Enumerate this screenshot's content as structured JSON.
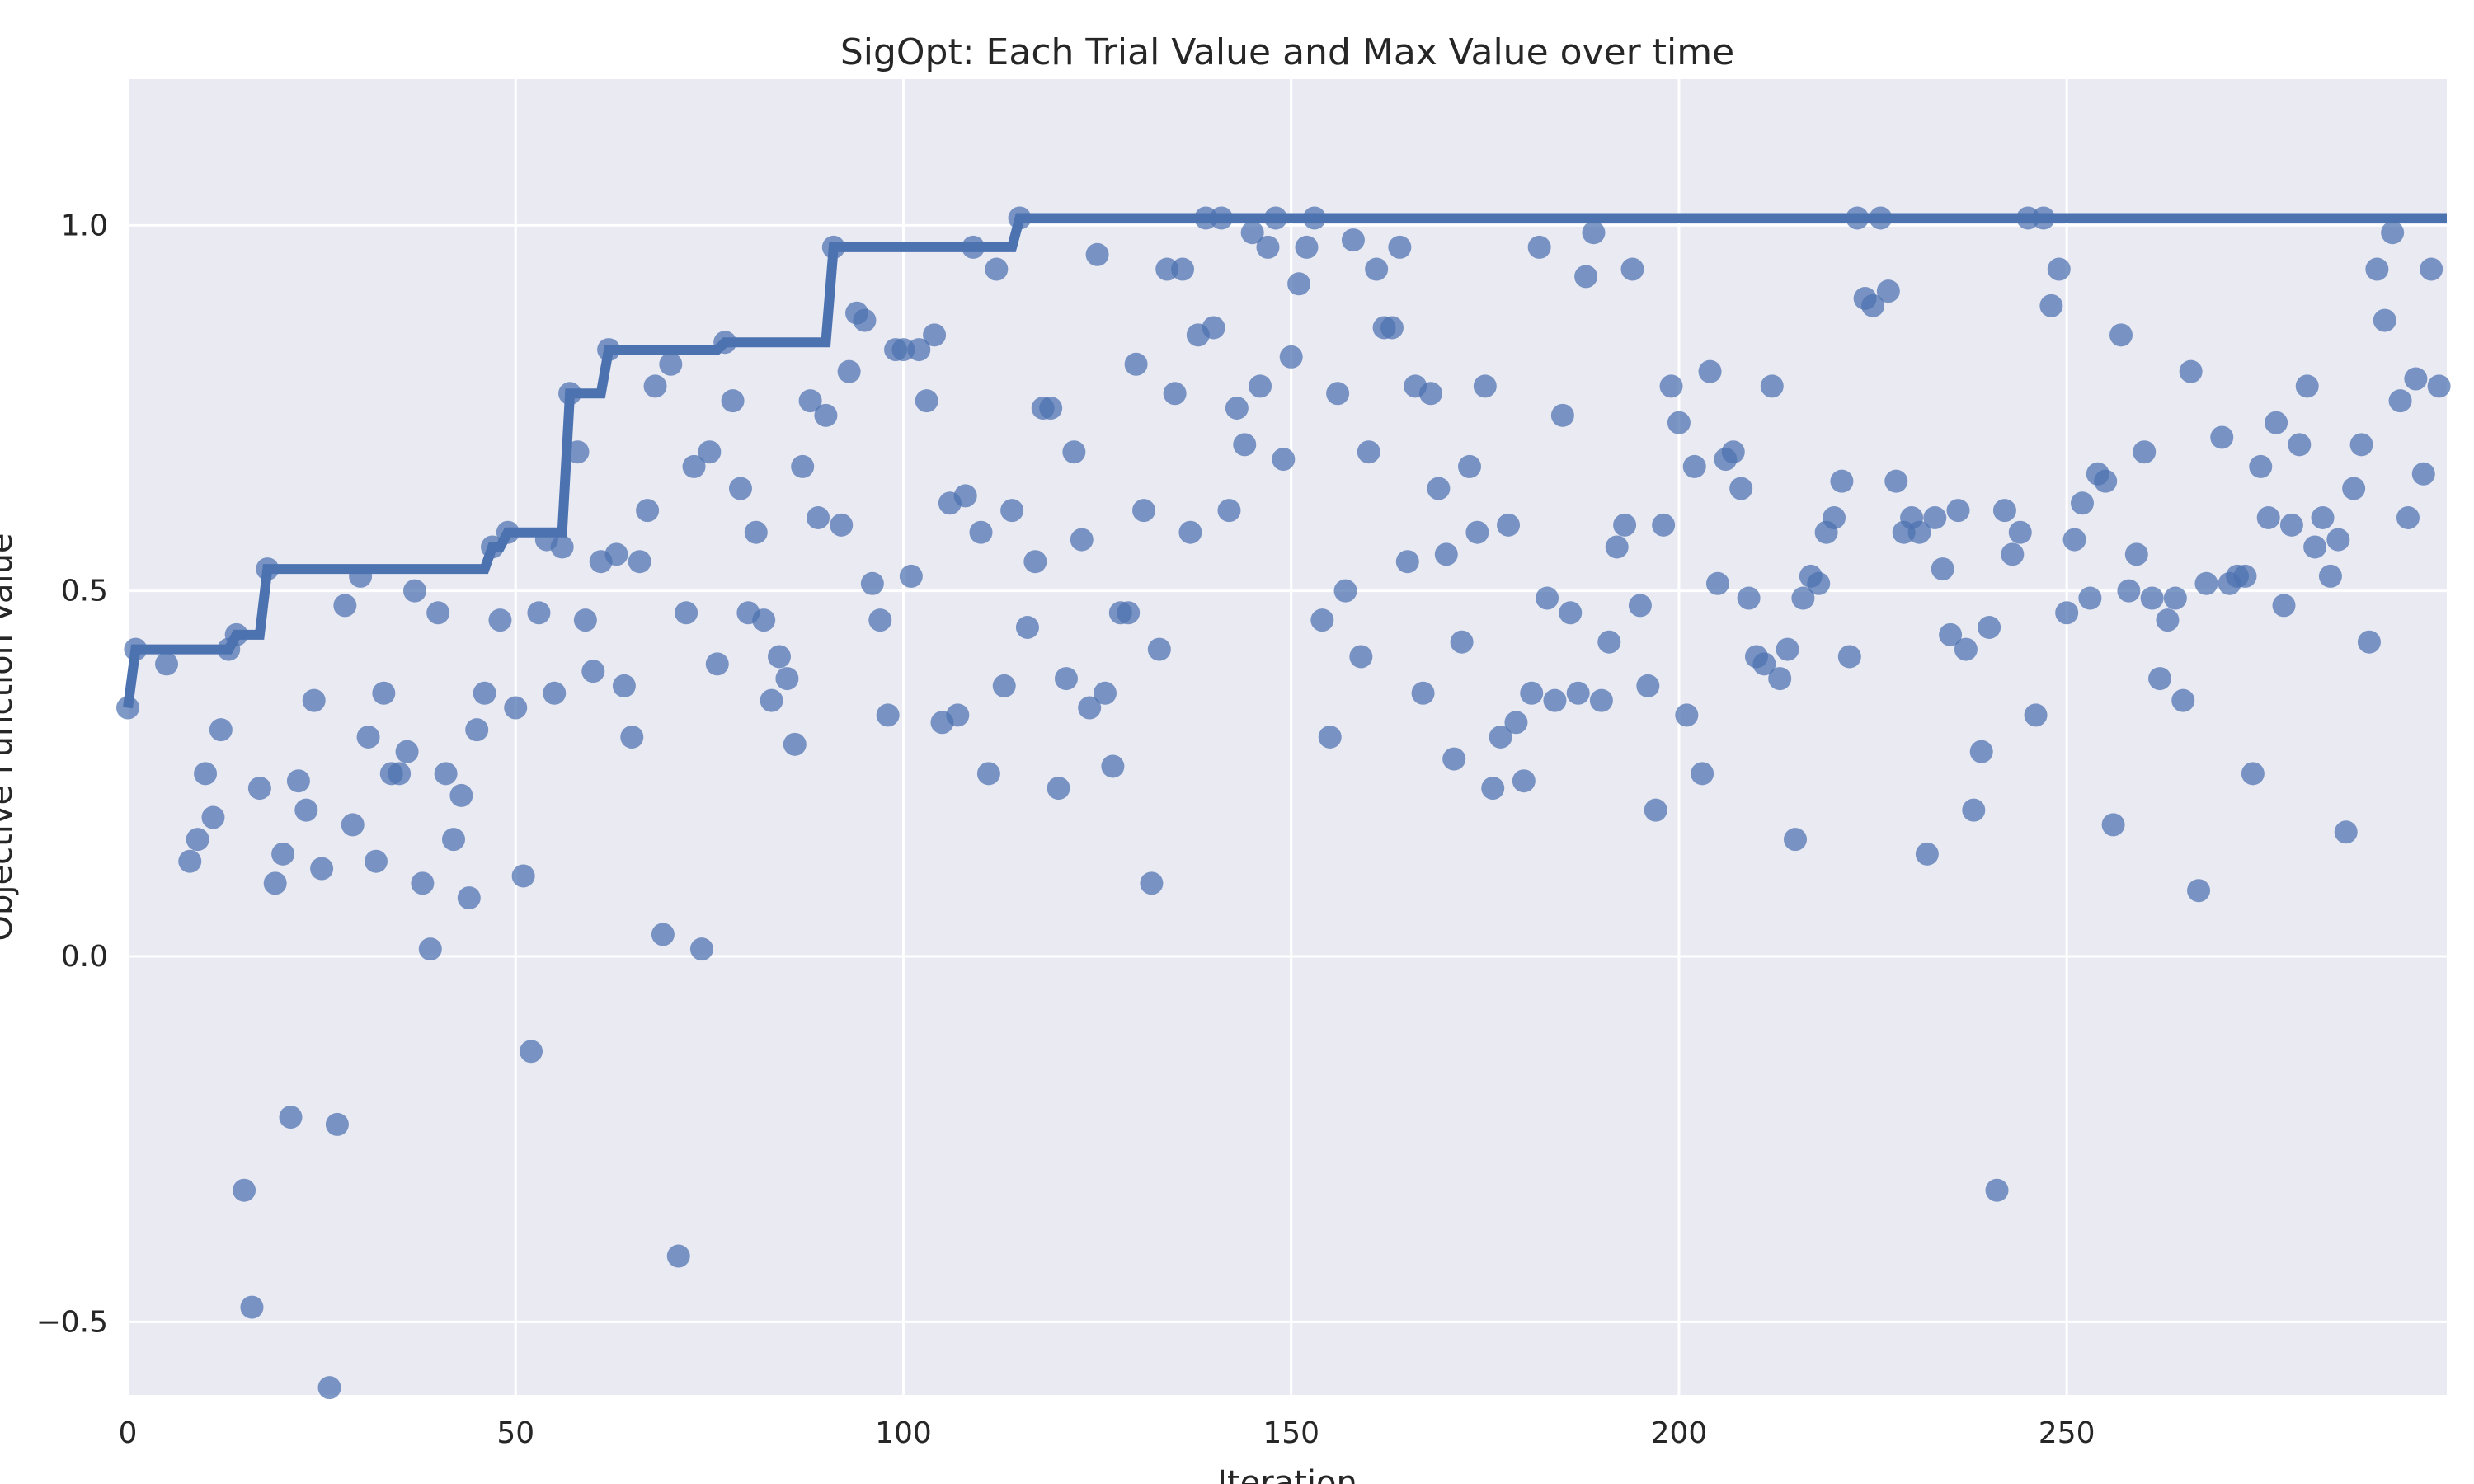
{
  "chart_data": {
    "type": "scatter",
    "title": "SigOpt: Each Trial Value and Max Value over time",
    "xlabel": "Iteration",
    "ylabel": "Objective Function Value",
    "xlim": [
      0,
      299
    ],
    "ylim": [
      -0.6,
      1.2
    ],
    "grid": true,
    "x_ticks": [
      0,
      50,
      100,
      150,
      200,
      250
    ],
    "y_ticks": [
      -0.5,
      0.0,
      0.5,
      1.0
    ],
    "x_tick_labels": [
      "0",
      "50",
      "100",
      "150",
      "200",
      "250"
    ],
    "y_tick_labels": [
      "−0.5",
      "0.0",
      "0.5",
      "1.0"
    ],
    "colors": {
      "background": "#eaeaf2",
      "points": "#4c72b0",
      "max_line": "#4c72b0"
    },
    "series": [
      {
        "kind": "scatter",
        "points": [
          [
            0,
            0.34
          ],
          [
            1,
            0.42
          ],
          [
            5,
            0.4
          ],
          [
            8,
            0.13
          ],
          [
            9,
            0.16
          ],
          [
            10,
            0.25
          ],
          [
            11,
            0.19
          ],
          [
            12,
            0.31
          ],
          [
            13,
            0.42
          ],
          [
            14,
            0.44
          ],
          [
            15,
            -0.32
          ],
          [
            16,
            -0.48
          ],
          [
            17,
            0.23
          ],
          [
            18,
            0.53
          ],
          [
            19,
            0.1
          ],
          [
            20,
            0.14
          ],
          [
            21,
            -0.22
          ],
          [
            22,
            0.24
          ],
          [
            23,
            0.2
          ],
          [
            24,
            0.35
          ],
          [
            25,
            0.12
          ],
          [
            26,
            -0.59
          ],
          [
            27,
            -0.23
          ],
          [
            28,
            0.48
          ],
          [
            29,
            0.18
          ],
          [
            30,
            0.52
          ],
          [
            31,
            0.3
          ],
          [
            32,
            0.13
          ],
          [
            33,
            0.36
          ],
          [
            34,
            0.25
          ],
          [
            35,
            0.25
          ],
          [
            36,
            0.28
          ],
          [
            37,
            0.5
          ],
          [
            38,
            0.1
          ],
          [
            39,
            0.01
          ],
          [
            40,
            0.47
          ],
          [
            41,
            0.25
          ],
          [
            42,
            0.16
          ],
          [
            43,
            0.22
          ],
          [
            44,
            0.08
          ],
          [
            45,
            0.31
          ],
          [
            46,
            0.36
          ],
          [
            47,
            0.56
          ],
          [
            48,
            0.46
          ],
          [
            49,
            0.58
          ],
          [
            50,
            0.34
          ],
          [
            51,
            0.11
          ],
          [
            52,
            -0.13
          ],
          [
            53,
            0.47
          ],
          [
            54,
            0.57
          ],
          [
            55,
            0.36
          ],
          [
            56,
            0.56
          ],
          [
            57,
            0.77
          ],
          [
            58,
            0.69
          ],
          [
            59,
            0.46
          ],
          [
            60,
            0.39
          ],
          [
            61,
            0.54
          ],
          [
            62,
            0.83
          ],
          [
            63,
            0.55
          ],
          [
            64,
            0.37
          ],
          [
            65,
            0.3
          ],
          [
            66,
            0.54
          ],
          [
            67,
            0.61
          ],
          [
            68,
            0.78
          ],
          [
            69,
            0.03
          ],
          [
            70,
            0.81
          ],
          [
            71,
            -0.41
          ],
          [
            72,
            0.47
          ],
          [
            73,
            0.67
          ],
          [
            74,
            0.01
          ],
          [
            75,
            0.69
          ],
          [
            76,
            0.4
          ],
          [
            77,
            0.84
          ],
          [
            78,
            0.76
          ],
          [
            79,
            0.64
          ],
          [
            80,
            0.47
          ],
          [
            81,
            0.58
          ],
          [
            82,
            0.46
          ],
          [
            83,
            0.35
          ],
          [
            84,
            0.41
          ],
          [
            85,
            0.38
          ],
          [
            86,
            0.29
          ],
          [
            87,
            0.67
          ],
          [
            88,
            0.76
          ],
          [
            89,
            0.6
          ],
          [
            90,
            0.74
          ],
          [
            91,
            0.97
          ],
          [
            92,
            0.59
          ],
          [
            93,
            0.8
          ],
          [
            94,
            0.88
          ],
          [
            95,
            0.87
          ],
          [
            96,
            0.51
          ],
          [
            97,
            0.46
          ],
          [
            98,
            0.33
          ],
          [
            99,
            0.83
          ],
          [
            100,
            0.83
          ],
          [
            101,
            0.52
          ],
          [
            102,
            0.83
          ],
          [
            103,
            0.76
          ],
          [
            104,
            0.85
          ],
          [
            105,
            0.32
          ],
          [
            106,
            0.62
          ],
          [
            107,
            0.33
          ],
          [
            108,
            0.63
          ],
          [
            109,
            0.97
          ],
          [
            110,
            0.58
          ],
          [
            111,
            0.25
          ],
          [
            112,
            0.94
          ],
          [
            113,
            0.37
          ],
          [
            114,
            0.61
          ],
          [
            115,
            1.01
          ],
          [
            116,
            0.45
          ],
          [
            117,
            0.54
          ],
          [
            118,
            0.75
          ],
          [
            119,
            0.75
          ],
          [
            120,
            0.23
          ],
          [
            121,
            0.38
          ],
          [
            122,
            0.69
          ],
          [
            123,
            0.57
          ],
          [
            124,
            0.34
          ],
          [
            125,
            0.96
          ],
          [
            126,
            0.36
          ],
          [
            127,
            0.26
          ],
          [
            128,
            0.47
          ],
          [
            129,
            0.47
          ],
          [
            130,
            0.81
          ],
          [
            131,
            0.61
          ],
          [
            132,
            0.1
          ],
          [
            133,
            0.42
          ],
          [
            134,
            0.94
          ],
          [
            135,
            0.77
          ],
          [
            136,
            0.94
          ],
          [
            137,
            0.58
          ],
          [
            138,
            0.85
          ],
          [
            139,
            1.01
          ],
          [
            140,
            0.86
          ],
          [
            141,
            1.01
          ],
          [
            142,
            0.61
          ],
          [
            143,
            0.75
          ],
          [
            144,
            0.7
          ],
          [
            145,
            0.99
          ],
          [
            146,
            0.78
          ],
          [
            147,
            0.97
          ],
          [
            148,
            1.01
          ],
          [
            149,
            0.68
          ],
          [
            150,
            0.82
          ],
          [
            151,
            0.92
          ],
          [
            152,
            0.97
          ],
          [
            153,
            1.01
          ],
          [
            154,
            0.46
          ],
          [
            155,
            0.3
          ],
          [
            156,
            0.77
          ],
          [
            157,
            0.5
          ],
          [
            158,
            0.98
          ],
          [
            159,
            0.41
          ],
          [
            160,
            0.69
          ],
          [
            161,
            0.94
          ],
          [
            162,
            0.86
          ],
          [
            163,
            0.86
          ],
          [
            164,
            0.97
          ],
          [
            165,
            0.54
          ],
          [
            166,
            0.78
          ],
          [
            167,
            0.36
          ],
          [
            168,
            0.77
          ],
          [
            169,
            0.64
          ],
          [
            170,
            0.55
          ],
          [
            171,
            0.27
          ],
          [
            172,
            0.43
          ],
          [
            173,
            0.67
          ],
          [
            174,
            0.58
          ],
          [
            175,
            0.78
          ],
          [
            176,
            0.23
          ],
          [
            177,
            0.3
          ],
          [
            178,
            0.59
          ],
          [
            179,
            0.32
          ],
          [
            180,
            0.24
          ],
          [
            181,
            0.36
          ],
          [
            182,
            0.97
          ],
          [
            183,
            0.49
          ],
          [
            184,
            0.35
          ],
          [
            185,
            0.74
          ],
          [
            186,
            0.47
          ],
          [
            187,
            0.36
          ],
          [
            188,
            0.93
          ],
          [
            189,
            0.99
          ],
          [
            190,
            0.35
          ],
          [
            191,
            0.43
          ],
          [
            192,
            0.56
          ],
          [
            193,
            0.59
          ],
          [
            194,
            0.94
          ],
          [
            195,
            0.48
          ],
          [
            196,
            0.37
          ],
          [
            197,
            0.2
          ],
          [
            198,
            0.59
          ],
          [
            199,
            0.78
          ],
          [
            200,
            0.73
          ],
          [
            201,
            0.33
          ],
          [
            202,
            0.67
          ],
          [
            203,
            0.25
          ],
          [
            204,
            0.8
          ],
          [
            205,
            0.51
          ],
          [
            206,
            0.68
          ],
          [
            207,
            0.69
          ],
          [
            208,
            0.64
          ],
          [
            209,
            0.49
          ],
          [
            210,
            0.41
          ],
          [
            211,
            0.4
          ],
          [
            212,
            0.78
          ],
          [
            213,
            0.38
          ],
          [
            214,
            0.42
          ],
          [
            215,
            0.16
          ],
          [
            216,
            0.49
          ],
          [
            217,
            0.52
          ],
          [
            218,
            0.51
          ],
          [
            219,
            0.58
          ],
          [
            220,
            0.6
          ],
          [
            221,
            0.65
          ],
          [
            222,
            0.41
          ],
          [
            223,
            1.01
          ],
          [
            224,
            0.9
          ],
          [
            225,
            0.89
          ],
          [
            226,
            1.01
          ],
          [
            227,
            0.91
          ],
          [
            228,
            0.65
          ],
          [
            229,
            0.58
          ],
          [
            230,
            0.6
          ],
          [
            231,
            0.58
          ],
          [
            232,
            0.14
          ],
          [
            233,
            0.6
          ],
          [
            234,
            0.53
          ],
          [
            235,
            0.44
          ],
          [
            236,
            0.61
          ],
          [
            237,
            0.42
          ],
          [
            238,
            0.2
          ],
          [
            239,
            0.28
          ],
          [
            240,
            0.45
          ],
          [
            241,
            -0.32
          ],
          [
            242,
            0.61
          ],
          [
            243,
            0.55
          ],
          [
            244,
            0.58
          ],
          [
            245,
            1.01
          ],
          [
            246,
            0.33
          ],
          [
            247,
            1.01
          ],
          [
            248,
            0.89
          ],
          [
            249,
            0.94
          ],
          [
            250,
            0.47
          ],
          [
            251,
            0.57
          ],
          [
            252,
            0.62
          ],
          [
            253,
            0.49
          ],
          [
            254,
            0.66
          ],
          [
            255,
            0.65
          ],
          [
            256,
            0.18
          ],
          [
            257,
            0.85
          ],
          [
            258,
            0.5
          ],
          [
            259,
            0.55
          ],
          [
            260,
            0.69
          ],
          [
            261,
            0.49
          ],
          [
            262,
            0.38
          ],
          [
            263,
            0.46
          ],
          [
            264,
            0.49
          ],
          [
            265,
            0.35
          ],
          [
            266,
            0.8
          ],
          [
            267,
            0.09
          ],
          [
            268,
            0.51
          ],
          [
            270,
            0.71
          ],
          [
            271,
            0.51
          ],
          [
            272,
            0.52
          ],
          [
            273,
            0.52
          ],
          [
            274,
            0.25
          ],
          [
            275,
            0.67
          ],
          [
            276,
            0.6
          ],
          [
            277,
            0.73
          ],
          [
            278,
            0.48
          ],
          [
            279,
            0.59
          ],
          [
            280,
            0.7
          ],
          [
            281,
            0.78
          ],
          [
            282,
            0.56
          ],
          [
            283,
            0.6
          ],
          [
            284,
            0.52
          ],
          [
            285,
            0.57
          ],
          [
            286,
            0.17
          ],
          [
            287,
            0.64
          ],
          [
            288,
            0.7
          ],
          [
            289,
            0.43
          ],
          [
            290,
            0.94
          ],
          [
            291,
            0.87
          ],
          [
            292,
            0.99
          ],
          [
            293,
            0.76
          ],
          [
            294,
            0.6
          ],
          [
            295,
            0.79
          ],
          [
            296,
            0.66
          ],
          [
            297,
            0.94
          ],
          [
            298,
            0.78
          ]
        ]
      },
      {
        "kind": "line",
        "points": [
          [
            0,
            0.34
          ],
          [
            1,
            0.42
          ],
          [
            13,
            0.42
          ],
          [
            14,
            0.44
          ],
          [
            17,
            0.44
          ],
          [
            18,
            0.53
          ],
          [
            46,
            0.53
          ],
          [
            47,
            0.56
          ],
          [
            48,
            0.56
          ],
          [
            49,
            0.58
          ],
          [
            56,
            0.58
          ],
          [
            57,
            0.77
          ],
          [
            61,
            0.77
          ],
          [
            62,
            0.83
          ],
          [
            76,
            0.83
          ],
          [
            77,
            0.84
          ],
          [
            90,
            0.84
          ],
          [
            91,
            0.97
          ],
          [
            114,
            0.97
          ],
          [
            115,
            1.01
          ],
          [
            299,
            1.01
          ]
        ]
      }
    ]
  }
}
